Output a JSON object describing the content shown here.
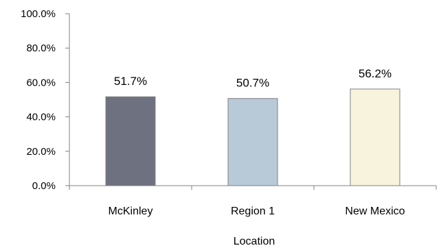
{
  "chart_data": {
    "type": "bar",
    "categories": [
      "McKinley",
      "Region 1",
      "New Mexico"
    ],
    "values": [
      51.7,
      50.7,
      56.2
    ],
    "data_labels": [
      "51.7%",
      "50.7%",
      "56.2%"
    ],
    "colors": [
      "#6e7180",
      "#b8c9d8",
      "#f7f3dc"
    ],
    "bar_stroke": "#808080",
    "title": "",
    "xlabel": "Location",
    "ylabel": "",
    "ylim": [
      0,
      100
    ],
    "y_ticks": [
      0,
      20,
      40,
      60,
      80,
      100
    ],
    "y_tick_labels": [
      "0.0%",
      "20.0%",
      "40.0%",
      "60.0%",
      "80.0%",
      "100.0%"
    ],
    "grid": false,
    "legend": "none"
  }
}
